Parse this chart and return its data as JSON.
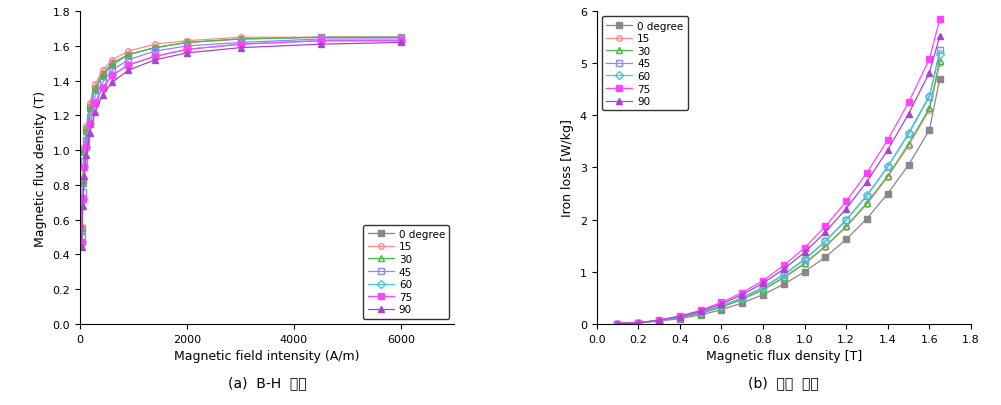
{
  "bh_curves": {
    "degrees": [
      "0 degree",
      "15",
      "30",
      "45",
      "60",
      "75",
      "90"
    ],
    "colors": [
      "#888888",
      "#ff8888",
      "#44bb44",
      "#8888ff",
      "#44cccc",
      "#ff44ff",
      "#aa44cc"
    ],
    "markers": [
      "s",
      "o",
      "^",
      "s",
      "D",
      "s",
      "^"
    ],
    "marker_fill": [
      "full",
      "none",
      "none",
      "none",
      "none",
      "full",
      "full"
    ],
    "H_data": [
      [
        30,
        50,
        80,
        120,
        180,
        280,
        420,
        600,
        900,
        1400,
        2000,
        3000,
        4500,
        6000
      ],
      [
        30,
        50,
        80,
        120,
        180,
        280,
        420,
        600,
        900,
        1400,
        2000,
        3000,
        4500,
        6000
      ],
      [
        30,
        50,
        80,
        120,
        180,
        280,
        420,
        600,
        900,
        1400,
        2000,
        3000,
        4500,
        6000
      ],
      [
        30,
        50,
        80,
        120,
        180,
        280,
        420,
        600,
        900,
        1400,
        2000,
        3000,
        4500,
        6000
      ],
      [
        30,
        50,
        80,
        120,
        180,
        280,
        420,
        600,
        900,
        1400,
        2000,
        3000,
        4500,
        6000
      ],
      [
        30,
        50,
        80,
        120,
        180,
        280,
        420,
        600,
        900,
        1400,
        2000,
        3000,
        4500,
        6000
      ],
      [
        30,
        50,
        80,
        120,
        180,
        280,
        420,
        600,
        900,
        1400,
        2000,
        3000,
        4500,
        6000
      ]
    ],
    "B_data": [
      [
        0.55,
        0.82,
        1.0,
        1.12,
        1.25,
        1.36,
        1.44,
        1.5,
        1.55,
        1.59,
        1.62,
        1.64,
        1.65,
        1.65
      ],
      [
        0.56,
        0.84,
        1.02,
        1.14,
        1.27,
        1.38,
        1.46,
        1.52,
        1.57,
        1.61,
        1.63,
        1.65,
        1.65,
        1.65
      ],
      [
        0.54,
        0.81,
        0.99,
        1.11,
        1.24,
        1.35,
        1.43,
        1.49,
        1.55,
        1.59,
        1.62,
        1.64,
        1.65,
        1.65
      ],
      [
        0.5,
        0.76,
        0.94,
        1.06,
        1.19,
        1.31,
        1.39,
        1.46,
        1.52,
        1.57,
        1.6,
        1.62,
        1.64,
        1.64
      ],
      [
        0.47,
        0.72,
        0.9,
        1.02,
        1.15,
        1.27,
        1.36,
        1.43,
        1.49,
        1.54,
        1.58,
        1.61,
        1.63,
        1.63
      ],
      [
        0.47,
        0.72,
        0.9,
        1.02,
        1.15,
        1.27,
        1.36,
        1.43,
        1.49,
        1.54,
        1.58,
        1.61,
        1.63,
        1.63
      ],
      [
        0.44,
        0.68,
        0.85,
        0.97,
        1.1,
        1.22,
        1.32,
        1.39,
        1.46,
        1.52,
        1.56,
        1.59,
        1.61,
        1.62
      ]
    ]
  },
  "ironloss_curves": {
    "degrees": [
      "0 degree",
      "15",
      "30",
      "45",
      "60",
      "75",
      "90"
    ],
    "colors": [
      "#888888",
      "#ff8888",
      "#44bb44",
      "#8888ff",
      "#44cccc",
      "#ff44ff",
      "#aa44cc"
    ],
    "markers": [
      "s",
      "o",
      "^",
      "s",
      "D",
      "s",
      "^"
    ],
    "marker_fill": [
      "full",
      "none",
      "none",
      "none",
      "none",
      "full",
      "full"
    ],
    "B_data": [
      [
        0.1,
        0.2,
        0.3,
        0.4,
        0.5,
        0.6,
        0.7,
        0.8,
        0.9,
        1.0,
        1.1,
        1.2,
        1.3,
        1.4,
        1.5,
        1.6,
        1.65
      ],
      [
        0.1,
        0.2,
        0.3,
        0.4,
        0.5,
        0.6,
        0.7,
        0.8,
        0.9,
        1.0,
        1.1,
        1.2,
        1.3,
        1.4,
        1.5,
        1.6,
        1.65
      ],
      [
        0.1,
        0.2,
        0.3,
        0.4,
        0.5,
        0.6,
        0.7,
        0.8,
        0.9,
        1.0,
        1.1,
        1.2,
        1.3,
        1.4,
        1.5,
        1.6,
        1.65
      ],
      [
        0.1,
        0.2,
        0.3,
        0.4,
        0.5,
        0.6,
        0.7,
        0.8,
        0.9,
        1.0,
        1.1,
        1.2,
        1.3,
        1.4,
        1.5,
        1.6,
        1.65
      ],
      [
        0.1,
        0.2,
        0.3,
        0.4,
        0.5,
        0.6,
        0.7,
        0.8,
        0.9,
        1.0,
        1.1,
        1.2,
        1.3,
        1.4,
        1.5,
        1.6,
        1.65
      ],
      [
        0.1,
        0.2,
        0.3,
        0.4,
        0.5,
        0.6,
        0.7,
        0.8,
        0.9,
        1.0,
        1.1,
        1.2,
        1.3,
        1.4,
        1.5,
        1.6,
        1.65
      ],
      [
        0.1,
        0.2,
        0.3,
        0.4,
        0.5,
        0.6,
        0.7,
        0.8,
        0.9,
        1.0,
        1.1,
        1.2,
        1.3,
        1.4,
        1.5,
        1.6,
        1.65
      ]
    ],
    "W_data": [
      [
        0.005,
        0.02,
        0.05,
        0.1,
        0.17,
        0.27,
        0.4,
        0.56,
        0.76,
        1.0,
        1.28,
        1.62,
        2.02,
        2.5,
        3.05,
        3.72,
        4.7
      ],
      [
        0.005,
        0.02,
        0.06,
        0.12,
        0.2,
        0.32,
        0.47,
        0.65,
        0.88,
        1.15,
        1.48,
        1.86,
        2.3,
        2.82,
        3.42,
        4.1,
        5.0
      ],
      [
        0.005,
        0.02,
        0.06,
        0.12,
        0.2,
        0.32,
        0.47,
        0.66,
        0.89,
        1.16,
        1.49,
        1.87,
        2.32,
        2.84,
        3.45,
        4.14,
        5.05
      ],
      [
        0.005,
        0.02,
        0.06,
        0.13,
        0.22,
        0.34,
        0.5,
        0.7,
        0.94,
        1.23,
        1.58,
        1.99,
        2.46,
        3.01,
        3.64,
        4.36,
        5.25
      ],
      [
        0.005,
        0.02,
        0.06,
        0.13,
        0.22,
        0.34,
        0.5,
        0.7,
        0.95,
        1.24,
        1.59,
        2.0,
        2.47,
        3.02,
        3.66,
        4.38,
        5.18
      ],
      [
        0.005,
        0.02,
        0.07,
        0.15,
        0.26,
        0.41,
        0.6,
        0.83,
        1.12,
        1.46,
        1.87,
        2.35,
        2.9,
        3.53,
        4.25,
        5.08,
        5.85
      ],
      [
        0.005,
        0.02,
        0.07,
        0.14,
        0.24,
        0.38,
        0.56,
        0.78,
        1.05,
        1.37,
        1.76,
        2.21,
        2.73,
        3.34,
        4.03,
        4.82,
        5.52
      ]
    ]
  },
  "subplot_labels": [
    "(a)  B-H  곡선",
    "(b)  철손  곡선"
  ],
  "bh_xlabel": "Magnetic field intensity (A/m)",
  "bh_ylabel": "Magnetic flux density (T)",
  "il_xlabel": "Magnetic flux density [T]",
  "il_ylabel": "Iron loss [W/kg]",
  "bh_xlim": [
    0,
    7000
  ],
  "bh_ylim": [
    0,
    1.8
  ],
  "il_xlim": [
    0.0,
    1.8
  ],
  "il_ylim": [
    0,
    6
  ],
  "bh_xticks": [
    0,
    2000,
    4000,
    6000
  ],
  "bh_yticks": [
    0.0,
    0.2,
    0.4,
    0.6,
    0.8,
    1.0,
    1.2,
    1.4,
    1.6,
    1.8
  ],
  "il_xticks": [
    0.0,
    0.2,
    0.4,
    0.6,
    0.8,
    1.0,
    1.2,
    1.4,
    1.6,
    1.8
  ],
  "il_yticks": [
    0,
    1,
    2,
    3,
    4,
    5,
    6
  ]
}
